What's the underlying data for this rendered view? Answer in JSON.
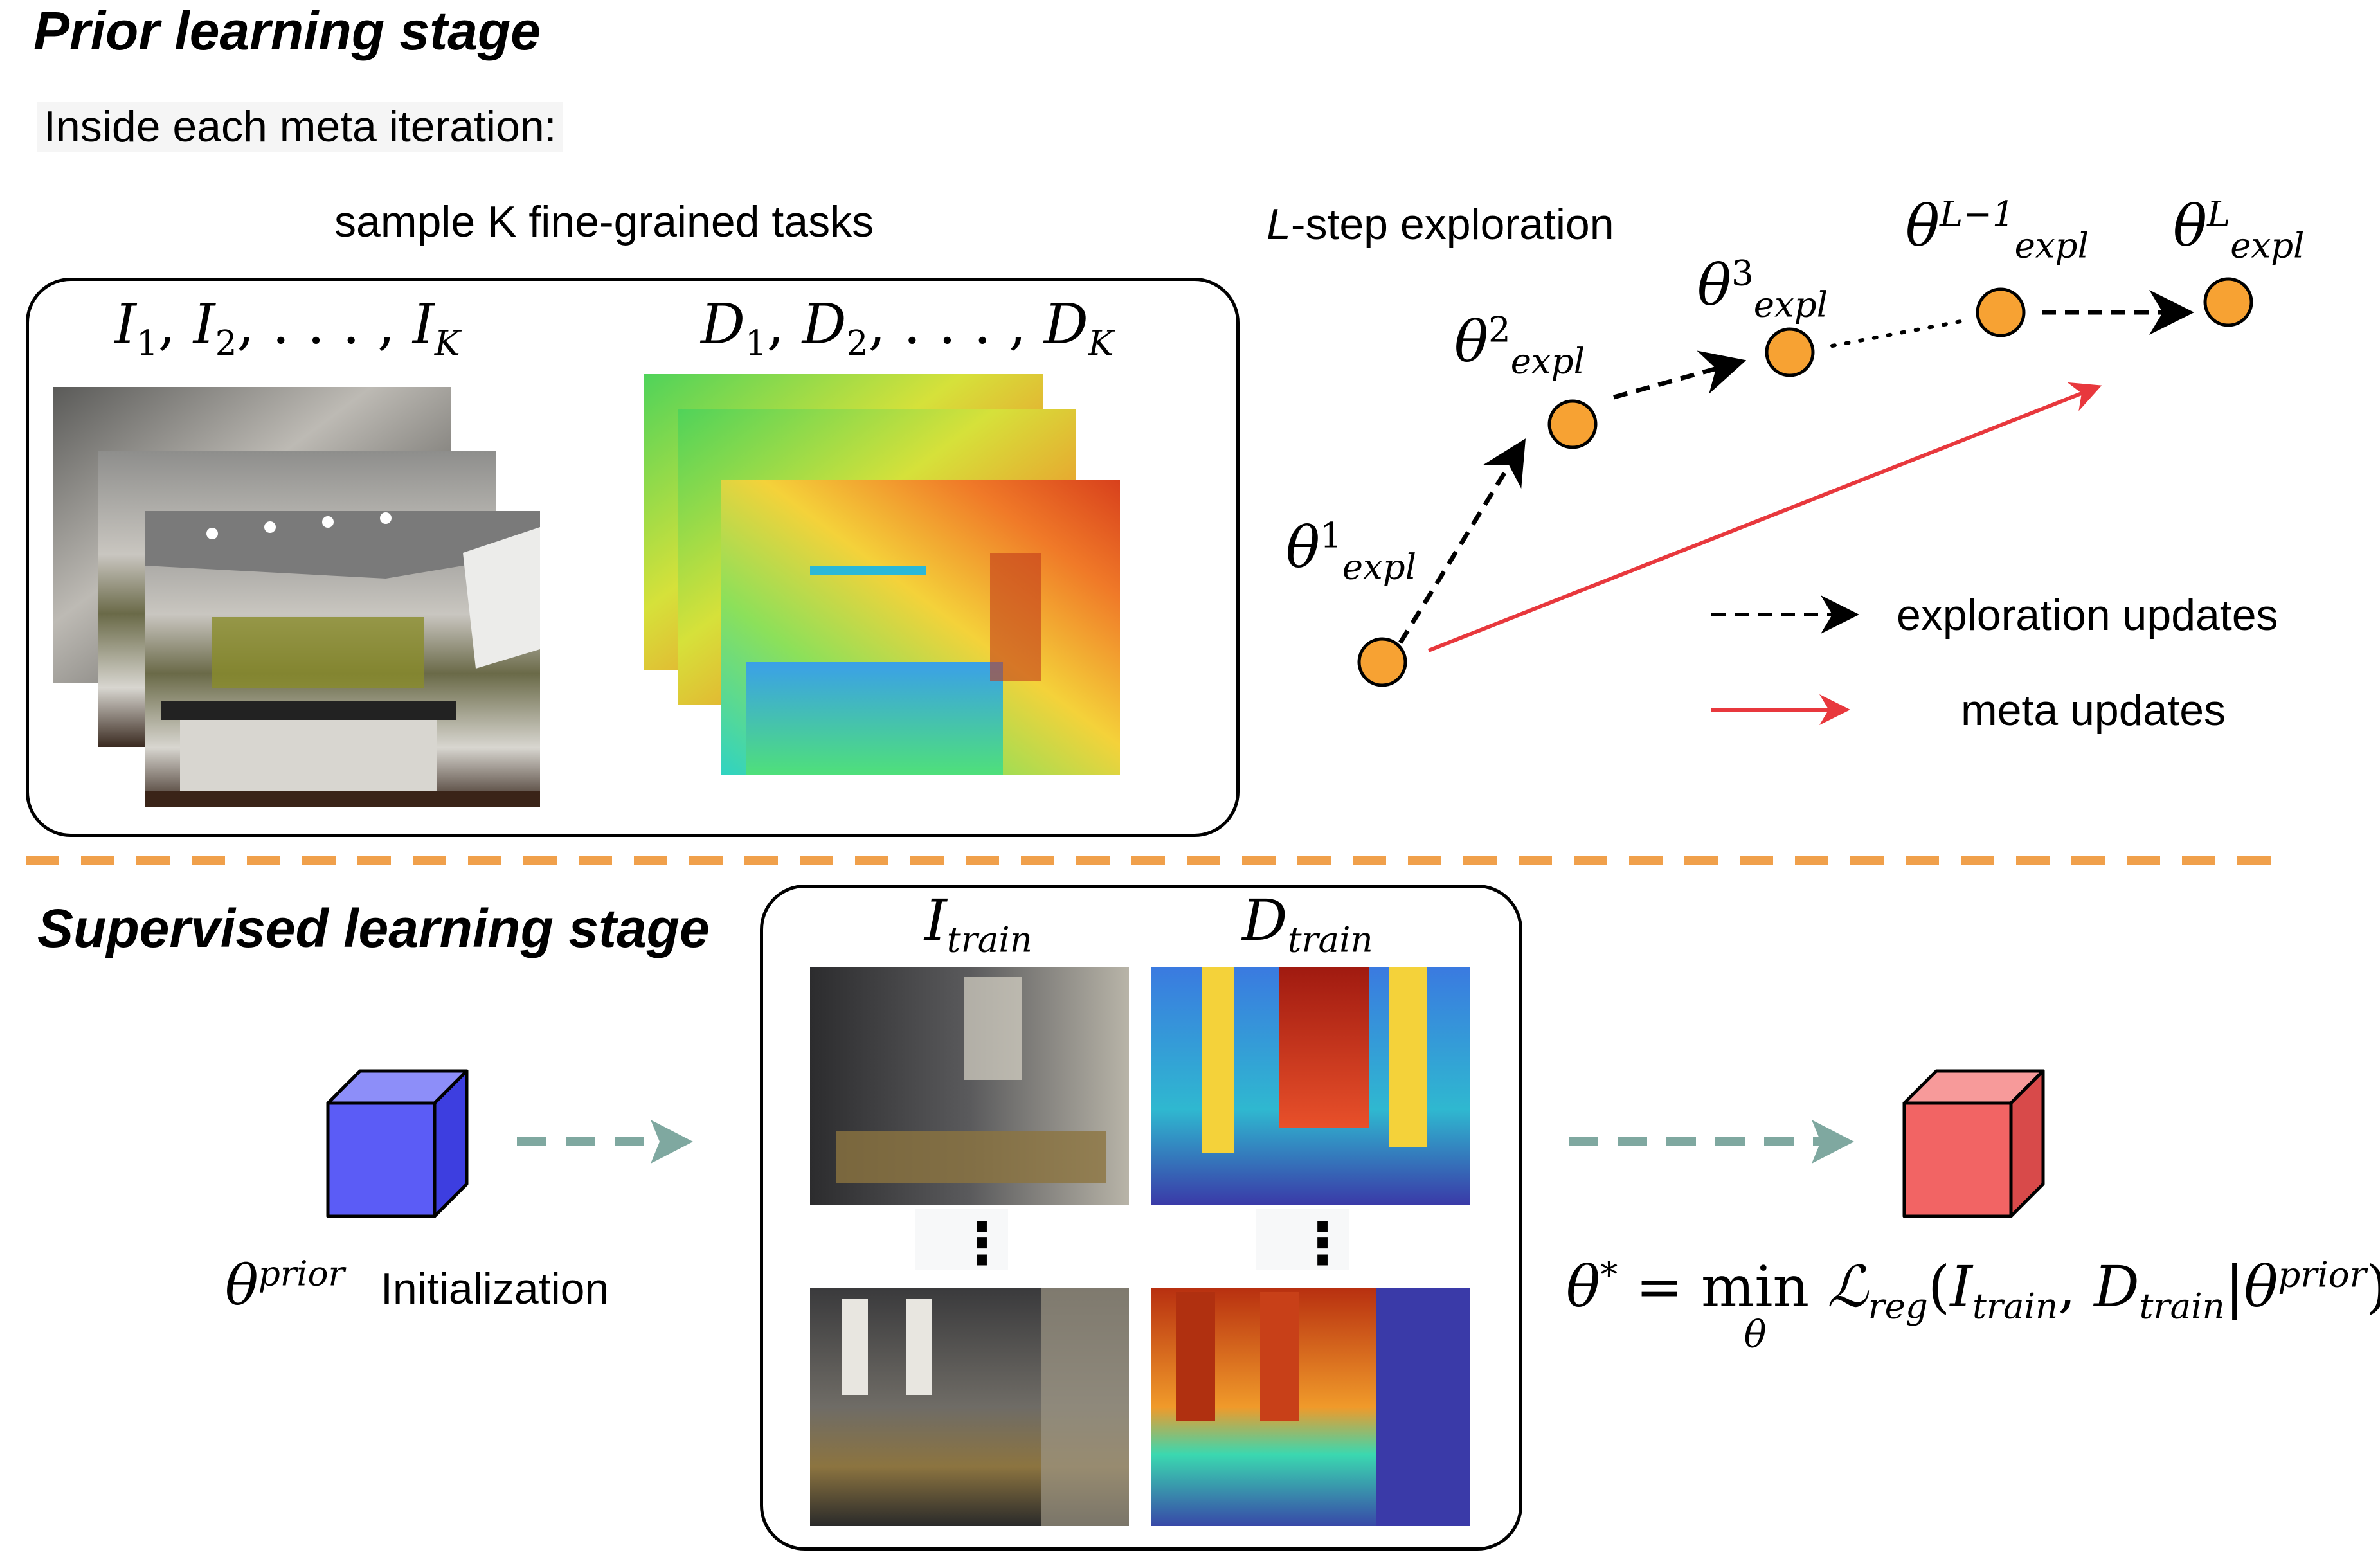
{
  "prior_stage": {
    "title": "Prior learning stage",
    "subtitle": "Inside each meta iteration:",
    "sample_caption": "sample K fine-grained tasks",
    "images_label": {
      "sym": "I",
      "s1": "1",
      "s2": "2",
      "sK": "K"
    },
    "depth_label": {
      "sym": "D",
      "s1": "1",
      "s2": "2",
      "sK": "K"
    },
    "exploration_title_italic": "L",
    "exploration_title_rest": "-step exploration",
    "theta_nodes": [
      {
        "sup": "1",
        "sub": "expl"
      },
      {
        "sup": "2",
        "sub": "expl"
      },
      {
        "sup": "3",
        "sub": "expl"
      },
      {
        "sup": "L−1",
        "sub": "expl"
      },
      {
        "sup": "L",
        "sub": "expl"
      }
    ],
    "legend": {
      "exploration": "exploration updates",
      "meta": "meta updates"
    }
  },
  "supervised_stage": {
    "title": "Supervised learning stage",
    "train_image_label": {
      "sym": "I",
      "sub": "train"
    },
    "train_depth_label": {
      "sym": "D",
      "sub": "train"
    },
    "prior_label": {
      "sym": "θ",
      "sup": "prior"
    },
    "init_label": "Initialization",
    "objective": {
      "lhs_sym": "θ",
      "lhs_sup": "*",
      "eq": "=",
      "min": "min",
      "min_sub": "θ",
      "loss_sym": "ℒ",
      "loss_sub": "reg",
      "open": "(",
      "I": "I",
      "I_sub": "train",
      "comma": ",",
      "D": "D",
      "D_sub": "train",
      "bar": "|",
      "theta": "θ",
      "theta_sup": "prior",
      "close": ")"
    }
  },
  "colors": {
    "node_fill": "#f7a233",
    "meta_arrow": "#e8383d",
    "separator": "#f0a04b",
    "teal_arrow": "#7fa8a0",
    "cube_blue": "#5b5cf6",
    "cube_red": "#f26464"
  }
}
